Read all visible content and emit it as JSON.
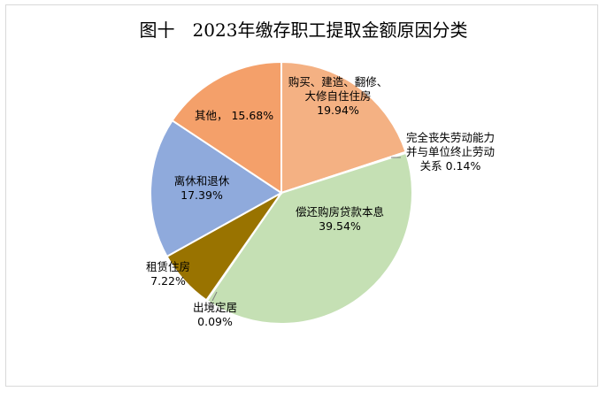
{
  "chart_data": {
    "type": "pie",
    "title": "图十　2023年缴存职工提取金额原因分类",
    "slices": [
      {
        "label": [
          "购买、建造、翻修、",
          "大修自住住房"
        ],
        "pct_text": "19.94%",
        "value": 19.94,
        "color": "#f4b183"
      },
      {
        "label": [
          "完全丧失劳动能力",
          "并与单位终止劳动",
          "关系"
        ],
        "pct_text": "0.14%",
        "value": 0.14,
        "color": "#a9d18e"
      },
      {
        "label": [
          "偿还购房贷款本息"
        ],
        "pct_text": "39.54%",
        "value": 39.54,
        "color": "#c5e0b4"
      },
      {
        "label": [
          "出境定居"
        ],
        "pct_text": "0.09%",
        "value": 0.09,
        "color": "#7f6000"
      },
      {
        "label": [
          "租赁住房"
        ],
        "pct_text": "7.22%",
        "value": 7.22,
        "color": "#997300"
      },
      {
        "label": [
          "离休和退休"
        ],
        "pct_text": "17.39%",
        "value": 17.39,
        "color": "#8faadc"
      },
      {
        "label": [
          "其他，"
        ],
        "pct_text": "15.68%",
        "value": 15.68,
        "color": "#f4a06a"
      }
    ]
  }
}
